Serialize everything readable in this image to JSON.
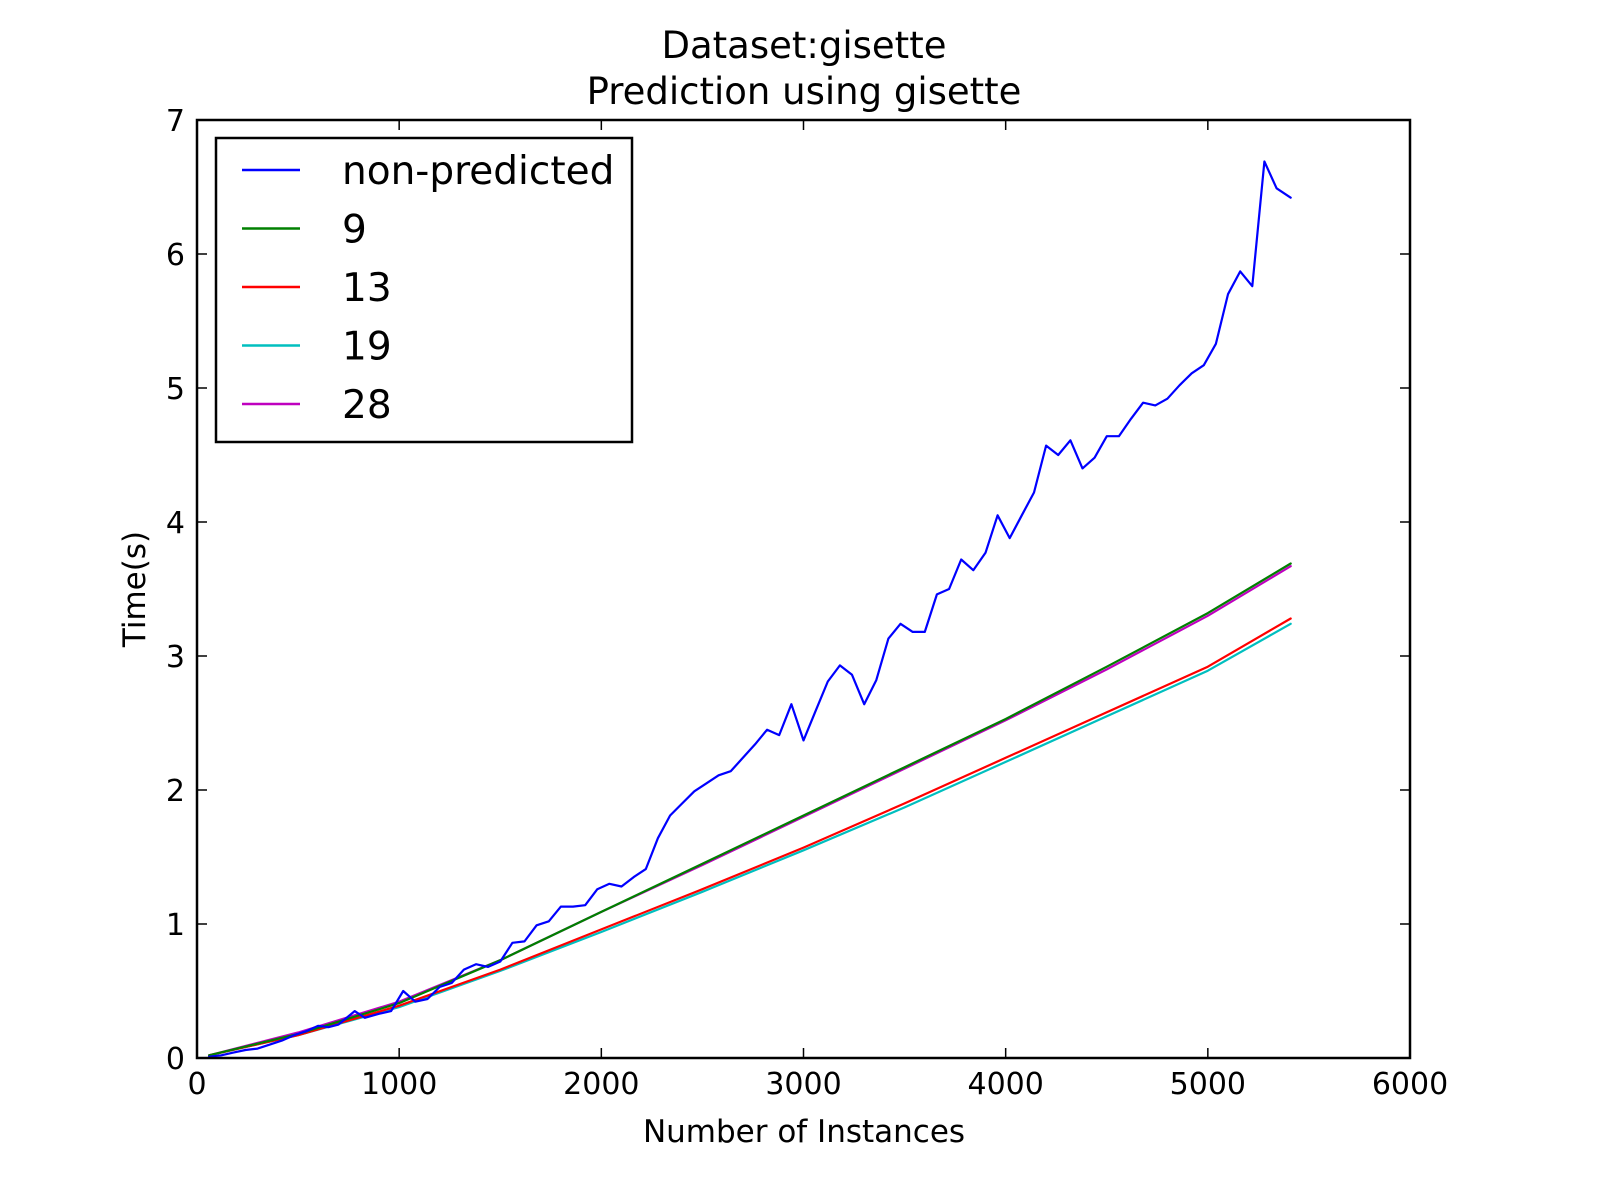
{
  "chart_data": {
    "type": "line",
    "title": "Dataset:gisette",
    "subtitle": "Prediction using gisette",
    "xlabel": "Number of Instances",
    "ylabel": "Time(s)",
    "xlim": [
      0,
      6000
    ],
    "ylim": [
      0,
      7
    ],
    "xticks": [
      0,
      1000,
      2000,
      3000,
      4000,
      5000,
      6000
    ],
    "yticks": [
      0,
      1,
      2,
      3,
      4,
      5,
      6,
      7
    ],
    "xtick_labels": [
      "0",
      "1000",
      "2000",
      "3000",
      "4000",
      "5000",
      "6000"
    ],
    "ytick_labels": [
      "0",
      "1",
      "2",
      "3",
      "4",
      "5",
      "6",
      "7"
    ],
    "grid": false,
    "legend_position": "top-left",
    "series": [
      {
        "name": "non-predicted",
        "color": "#0000ff",
        "x": [
          60,
          120,
          180,
          240,
          300,
          360,
          420,
          480,
          540,
          600,
          650,
          700,
          780,
          830,
          900,
          960,
          1020,
          1080,
          1140,
          1200,
          1260,
          1320,
          1380,
          1440,
          1500,
          1560,
          1620,
          1680,
          1740,
          1800,
          1860,
          1920,
          1980,
          2040,
          2100,
          2160,
          2220,
          2280,
          2340,
          2400,
          2460,
          2520,
          2580,
          2640,
          2700,
          2760,
          2820,
          2880,
          2940,
          3000,
          3060,
          3120,
          3180,
          3240,
          3300,
          3360,
          3420,
          3480,
          3540,
          3600,
          3660,
          3720,
          3780,
          3840,
          3900,
          3960,
          4020,
          4080,
          4140,
          4200,
          4260,
          4320,
          4380,
          4440,
          4500,
          4560,
          4620,
          4680,
          4740,
          4800,
          4860,
          4920,
          4980,
          5040,
          5100,
          5160,
          5220,
          5280,
          5340,
          5410
        ],
        "y": [
          0.01,
          0.02,
          0.04,
          0.06,
          0.07,
          0.1,
          0.13,
          0.17,
          0.2,
          0.24,
          0.23,
          0.25,
          0.35,
          0.3,
          0.33,
          0.35,
          0.5,
          0.42,
          0.44,
          0.53,
          0.56,
          0.66,
          0.7,
          0.68,
          0.72,
          0.86,
          0.87,
          0.99,
          1.02,
          1.13,
          1.13,
          1.14,
          1.26,
          1.3,
          1.28,
          1.35,
          1.41,
          1.64,
          1.81,
          1.9,
          1.99,
          2.05,
          2.11,
          2.14,
          2.24,
          2.34,
          2.45,
          2.41,
          2.64,
          2.37,
          2.59,
          2.81,
          2.93,
          2.86,
          2.64,
          2.82,
          3.13,
          3.24,
          3.18,
          3.18,
          3.46,
          3.5,
          3.72,
          3.64,
          3.77,
          4.05,
          3.88,
          4.05,
          4.22,
          4.57,
          4.5,
          4.61,
          4.4,
          4.48,
          4.64,
          4.64,
          4.77,
          4.89,
          4.87,
          4.92,
          5.02,
          5.11,
          5.17,
          5.33,
          5.7,
          5.87,
          5.76,
          6.69,
          6.49,
          6.42
        ]
      },
      {
        "name": "9",
        "color": "#008000",
        "x": [
          60,
          500,
          1000,
          1500,
          2000,
          2500,
          3000,
          3500,
          4000,
          4500,
          5000,
          5410
        ],
        "y": [
          0.02,
          0.18,
          0.41,
          0.73,
          1.09,
          1.45,
          1.81,
          2.17,
          2.53,
          2.92,
          3.32,
          3.69
        ]
      },
      {
        "name": "13",
        "color": "#ff0000",
        "x": [
          60,
          500,
          1000,
          1500,
          2000,
          2500,
          3000,
          3500,
          4000,
          4500,
          5000,
          5410
        ],
        "y": [
          0.02,
          0.17,
          0.39,
          0.66,
          0.96,
          1.26,
          1.57,
          1.9,
          2.24,
          2.58,
          2.92,
          3.28
        ]
      },
      {
        "name": "19",
        "color": "#00bfbf",
        "x": [
          60,
          500,
          1000,
          1500,
          2000,
          2500,
          3000,
          3500,
          4000,
          4500,
          5000,
          5410
        ],
        "y": [
          0.02,
          0.17,
          0.38,
          0.65,
          0.94,
          1.24,
          1.55,
          1.87,
          2.21,
          2.55,
          2.89,
          3.24
        ]
      },
      {
        "name": "28",
        "color": "#bf00bf",
        "x": [
          60,
          500,
          1000,
          1500,
          2000,
          2500,
          3000,
          3500,
          4000,
          4500,
          5000,
          5410
        ],
        "y": [
          0.02,
          0.19,
          0.42,
          0.73,
          1.09,
          1.44,
          1.8,
          2.16,
          2.52,
          2.9,
          3.3,
          3.67
        ]
      }
    ]
  }
}
